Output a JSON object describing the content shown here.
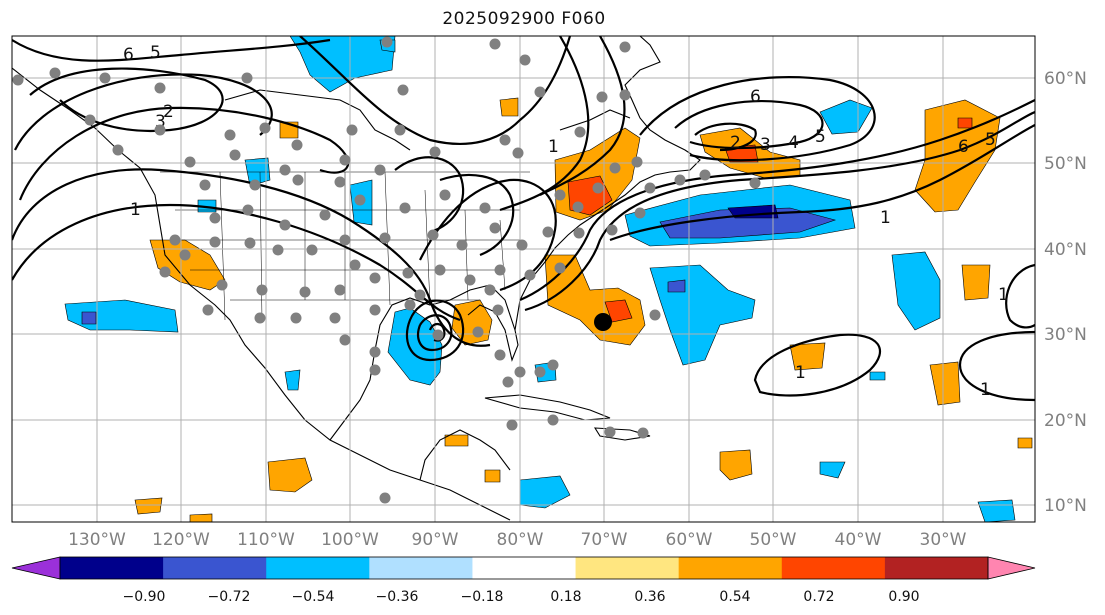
{
  "title": "2025092900 F060",
  "map": {
    "lon_labels": [
      "130°W",
      "120°W",
      "110°W",
      "100°W",
      "90°W",
      "80°W",
      "70°W",
      "60°W",
      "50°W",
      "40°W",
      "30°W"
    ],
    "lat_labels": [
      "60°N",
      "50°N",
      "40°N",
      "30°N",
      "20°N",
      "10°N"
    ],
    "contour_labels": [
      "6",
      "5",
      "2",
      "3",
      "1",
      "6",
      "4",
      "5",
      "3",
      "2",
      "6",
      "5",
      "1",
      "1",
      "1",
      "1",
      "1"
    ],
    "marker": "storm-center-dot"
  },
  "colorbar": {
    "tick_labels": [
      "−0.90",
      "−0.72",
      "−0.54",
      "−0.36",
      "−0.18",
      "0.18",
      "0.36",
      "0.54",
      "0.72",
      "0.90"
    ],
    "colors": [
      "#9b30d9",
      "#00008b",
      "#3a55d0",
      "#00bfff",
      "#b0e0ff",
      "#ffffff",
      "#ffe680",
      "#ffa500",
      "#ff4500",
      "#b22222",
      "#ff85b0"
    ]
  }
}
